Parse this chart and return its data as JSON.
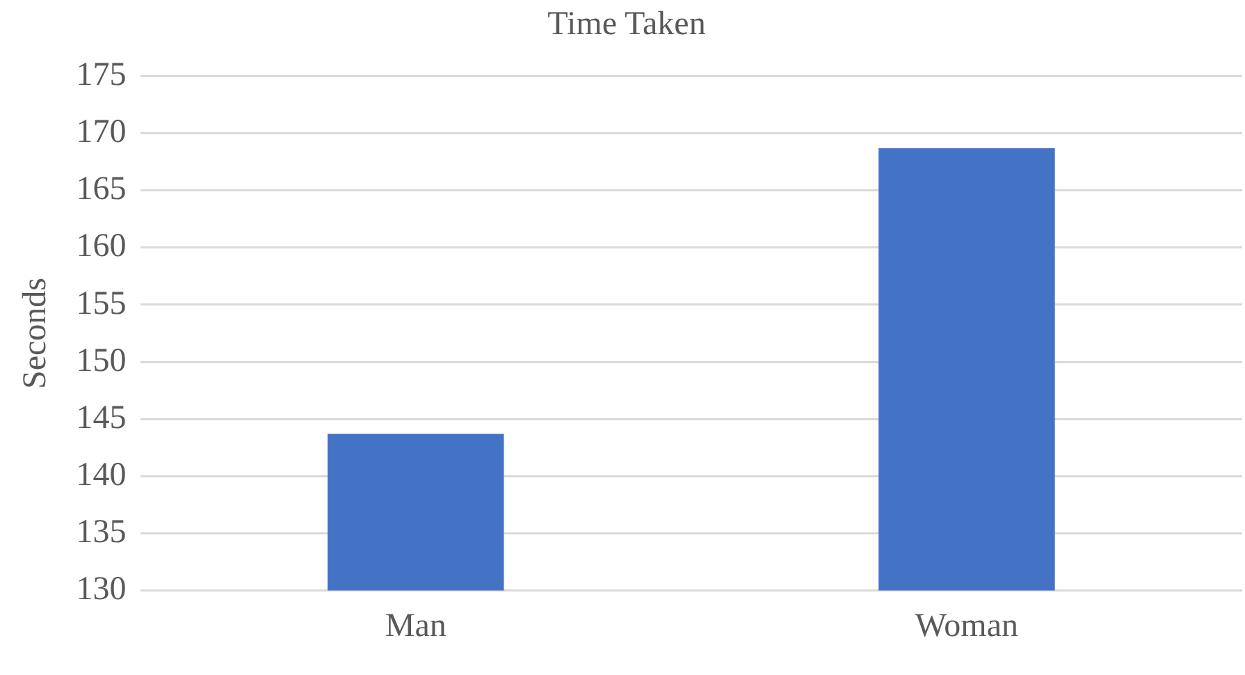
{
  "chart_data": {
    "type": "bar",
    "title": "Time Taken",
    "ylabel": "Seconds",
    "categories": [
      "Man",
      "Woman"
    ],
    "values": [
      143.7,
      168.7
    ],
    "color": "#4472c4",
    "ylim": [
      130,
      175
    ],
    "yticks": [
      130,
      135,
      140,
      145,
      150,
      155,
      160,
      165,
      170,
      175
    ],
    "grid": "y",
    "legend": false
  }
}
